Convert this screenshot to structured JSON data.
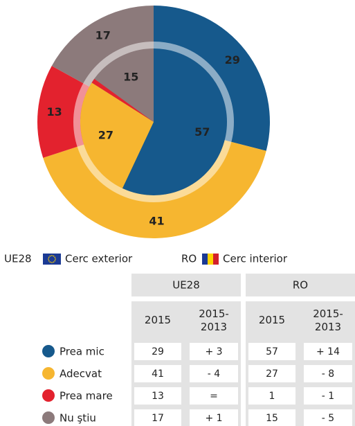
{
  "chart_data": {
    "type": "nested-pie",
    "categories": [
      "Prea mic",
      "Adecvat",
      "Prea mare",
      "Nu ştiu"
    ],
    "colors": [
      "#16598c",
      "#f6b630",
      "#e3222e",
      "#8c7a7b"
    ],
    "series": [
      {
        "name": "UE28",
        "label": "Cerc exterior",
        "values": [
          29,
          41,
          13,
          17
        ]
      },
      {
        "name": "RO",
        "label": "Cerc interior",
        "values": [
          57,
          27,
          1,
          15
        ]
      }
    ]
  },
  "table": {
    "columns": [
      "2015",
      "2015-\n2013"
    ],
    "changes": [
      [
        "+ 3",
        "+ 14"
      ],
      [
        "- 4",
        "- 8"
      ],
      [
        "=",
        "- 1"
      ],
      [
        "+ 1",
        "- 5"
      ]
    ]
  }
}
